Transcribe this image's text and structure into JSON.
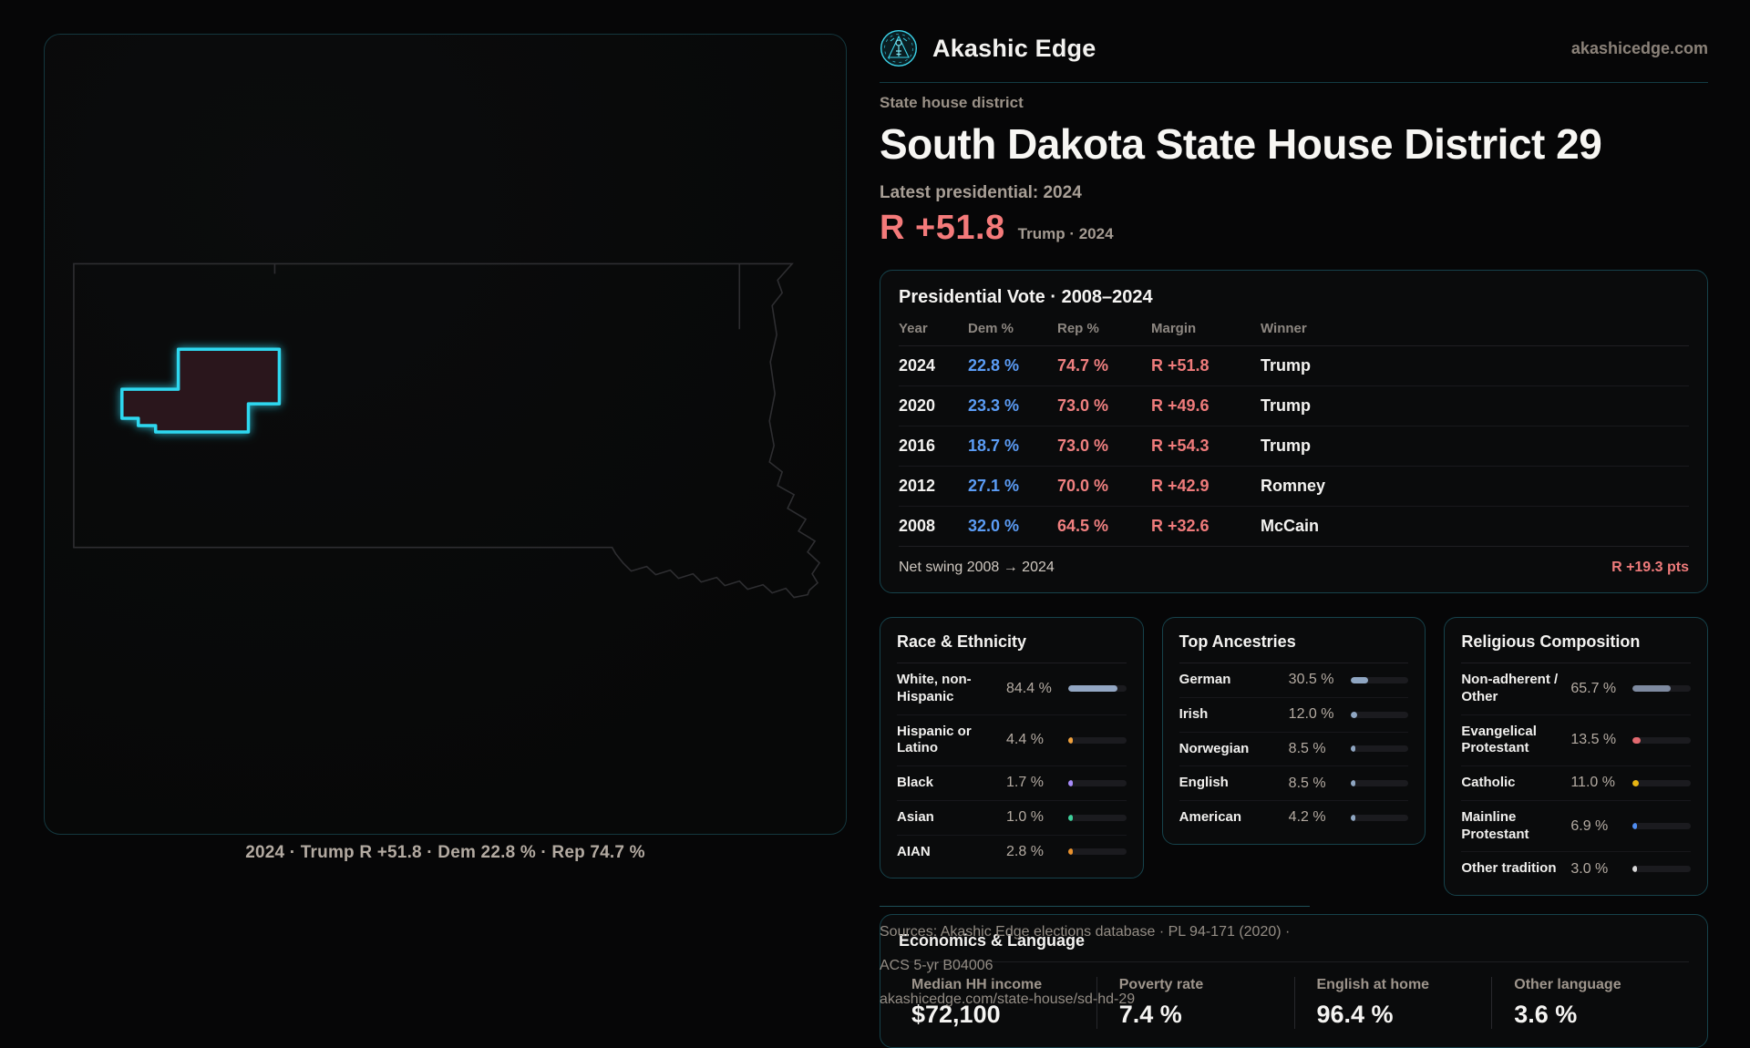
{
  "brand": {
    "name": "Akashic Edge",
    "domain": "akashicedge.com"
  },
  "header": {
    "kicker": "State house district",
    "title": "South Dakota State House District 29",
    "latest_label": "Latest presidential: 2024",
    "margin_big": "R +51.8",
    "margin_context": "Trump · 2024"
  },
  "map": {
    "caption": "2024 · Trump R +51.8 · Dem 22.8 % · Rep 74.7 %"
  },
  "colors": {
    "accent_cyan": "#2fd8f0",
    "dem_blue": "#5b9cf5",
    "rep_red": "#ef7b7b",
    "slate_bar": "#93a7c4",
    "amber_bar": "#f0a13c",
    "purple_bar": "#a78bfa",
    "teal_bar": "#3ecf9a",
    "orange_bar": "#e8912d",
    "rose_bar": "#e2696f",
    "yellow_bar": "#e7b513",
    "blue_bar": "#4f8df2",
    "gray_bar": "#d8d8d8"
  },
  "chart_data": {
    "type": "table",
    "title": "Presidential Vote · 2008–2024",
    "columns": [
      "Year",
      "Dem %",
      "Rep %",
      "Margin",
      "Winner"
    ],
    "rows": [
      {
        "year": "2024",
        "dem": "22.8 %",
        "rep": "74.7 %",
        "margin": "R +51.8",
        "winner": "Trump"
      },
      {
        "year": "2020",
        "dem": "23.3 %",
        "rep": "73.0 %",
        "margin": "R +49.6",
        "winner": "Trump"
      },
      {
        "year": "2016",
        "dem": "18.7 %",
        "rep": "73.0 %",
        "margin": "R +54.3",
        "winner": "Trump"
      },
      {
        "year": "2012",
        "dem": "27.1 %",
        "rep": "70.0 %",
        "margin": "R +42.9",
        "winner": "Romney"
      },
      {
        "year": "2008",
        "dem": "32.0 %",
        "rep": "64.5 %",
        "margin": "R +32.6",
        "winner": "McCain"
      }
    ],
    "net_swing_label": "Net swing 2008 → 2024",
    "net_swing_value": "R +19.3 pts"
  },
  "demographics": [
    {
      "id": "race",
      "title": "Race & Ethnicity",
      "rows": [
        {
          "label": "White, non-Hispanic",
          "value": "84.4 %",
          "pct": 84.4,
          "color": "#93a7c4"
        },
        {
          "label": "Hispanic or Latino",
          "value": "4.4 %",
          "pct": 4.4,
          "color": "#f0a13c"
        },
        {
          "label": "Black",
          "value": "1.7 %",
          "pct": 1.7,
          "color": "#a78bfa"
        },
        {
          "label": "Asian",
          "value": "1.0 %",
          "pct": 1.0,
          "color": "#3ecf9a"
        },
        {
          "label": "AIAN",
          "value": "2.8 %",
          "pct": 2.8,
          "color": "#e8912d"
        }
      ]
    },
    {
      "id": "ancestries",
      "title": "Top Ancestries",
      "rows": [
        {
          "label": "German",
          "value": "30.5 %",
          "pct": 30.5,
          "color": "#8fa6c2"
        },
        {
          "label": "Irish",
          "value": "12.0 %",
          "pct": 12.0,
          "color": "#8fa6c2"
        },
        {
          "label": "Norwegian",
          "value": "8.5 %",
          "pct": 8.5,
          "color": "#8fa6c2"
        },
        {
          "label": "English",
          "value": "8.5 %",
          "pct": 8.5,
          "color": "#8fa6c2"
        },
        {
          "label": "American",
          "value": "4.2 %",
          "pct": 4.2,
          "color": "#8fa6c2"
        }
      ]
    },
    {
      "id": "religion",
      "title": "Religious Composition",
      "rows": [
        {
          "label": "Non-adherent / Other",
          "value": "65.7 %",
          "pct": 65.7,
          "color": "#7e8aa0"
        },
        {
          "label": "Evangelical Protestant",
          "value": "13.5 %",
          "pct": 13.5,
          "color": "#e2696f"
        },
        {
          "label": "Catholic",
          "value": "11.0 %",
          "pct": 11.0,
          "color": "#e7b513"
        },
        {
          "label": "Mainline Protestant",
          "value": "6.9 %",
          "pct": 6.9,
          "color": "#4f8df2"
        },
        {
          "label": "Other tradition",
          "value": "3.0 %",
          "pct": 3.0,
          "color": "#d8d8d8"
        }
      ]
    }
  ],
  "economics": {
    "title": "Economics & Language",
    "stats": [
      {
        "label": "Median HH income",
        "value": "$72,100"
      },
      {
        "label": "Poverty rate",
        "value": "7.4 %"
      },
      {
        "label": "English at home",
        "value": "96.4 %"
      },
      {
        "label": "Other language",
        "value": "3.6 %"
      }
    ]
  },
  "sources": {
    "line1": "Sources: Akashic Edge elections database · PL 94-171 (2020) · ACS 5-yr B04006",
    "line2": "akashicedge.com/state-house/sd-hd-29"
  }
}
